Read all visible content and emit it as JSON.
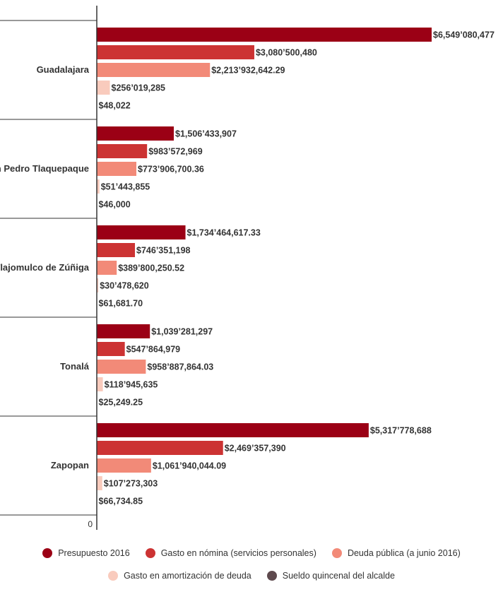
{
  "chart_data": {
    "type": "bar",
    "orientation": "horizontal",
    "categories": [
      "Guadalajara",
      "San Pedro Tlaquepaque",
      "Tlajomulco de Zúñiga",
      "Tonalá",
      "Zapopan"
    ],
    "series": [
      {
        "name": "Presupuesto 2016",
        "color": "#9b0015",
        "values": [
          6549080477,
          1506433907,
          1734464617.33,
          1039281297,
          5317778688
        ],
        "labels": [
          "$6,549’080,477",
          "$1,506’433,907",
          "$1,734’464,617.33",
          "$1,039’281,297",
          "$5,317’778,688"
        ]
      },
      {
        "name": "Gasto en nómina (servicios personales)",
        "color": "#cc3333",
        "values": [
          3080500480,
          983572969,
          746351198,
          547864979,
          2469357390
        ],
        "labels": [
          "$3,080’500,480",
          "$983’572,969",
          "$746’351,198",
          "$547’864,979",
          "$2,469’357,390"
        ]
      },
      {
        "name": "Deuda pública (a junio 2016)",
        "color": "#f28a78",
        "values": [
          2213932642.29,
          773906700.36,
          389800250.52,
          958887864.03,
          1061940044.09
        ],
        "labels": [
          "$2,213’932,642.29",
          "$773’906,700.36",
          "$389’800,250.52",
          "$958’887,864.03",
          "$1,061’940,044.09"
        ]
      },
      {
        "name": "Gasto en amortización de deuda",
        "color": "#f9cbbd",
        "values": [
          256019285,
          51443855,
          30478620,
          118945635,
          107273303
        ],
        "labels": [
          "$256’019,285",
          "$51’443,855",
          "$30’478,620",
          "$118’945,635",
          "$107’273,303"
        ]
      },
      {
        "name": "Sueldo quincenal del alcalde",
        "color": "#5e4a4e",
        "values": [
          48022,
          46000,
          61681.7,
          25249.25,
          66734.85
        ],
        "labels": [
          "$48,022",
          "$46,000",
          "$61,681.70",
          "$25,249.25",
          "$66,734.85"
        ]
      }
    ],
    "xlim": [
      0,
      6549080477
    ],
    "x_tick_labels": [
      "0"
    ],
    "legend": "bottom",
    "grid": false
  }
}
